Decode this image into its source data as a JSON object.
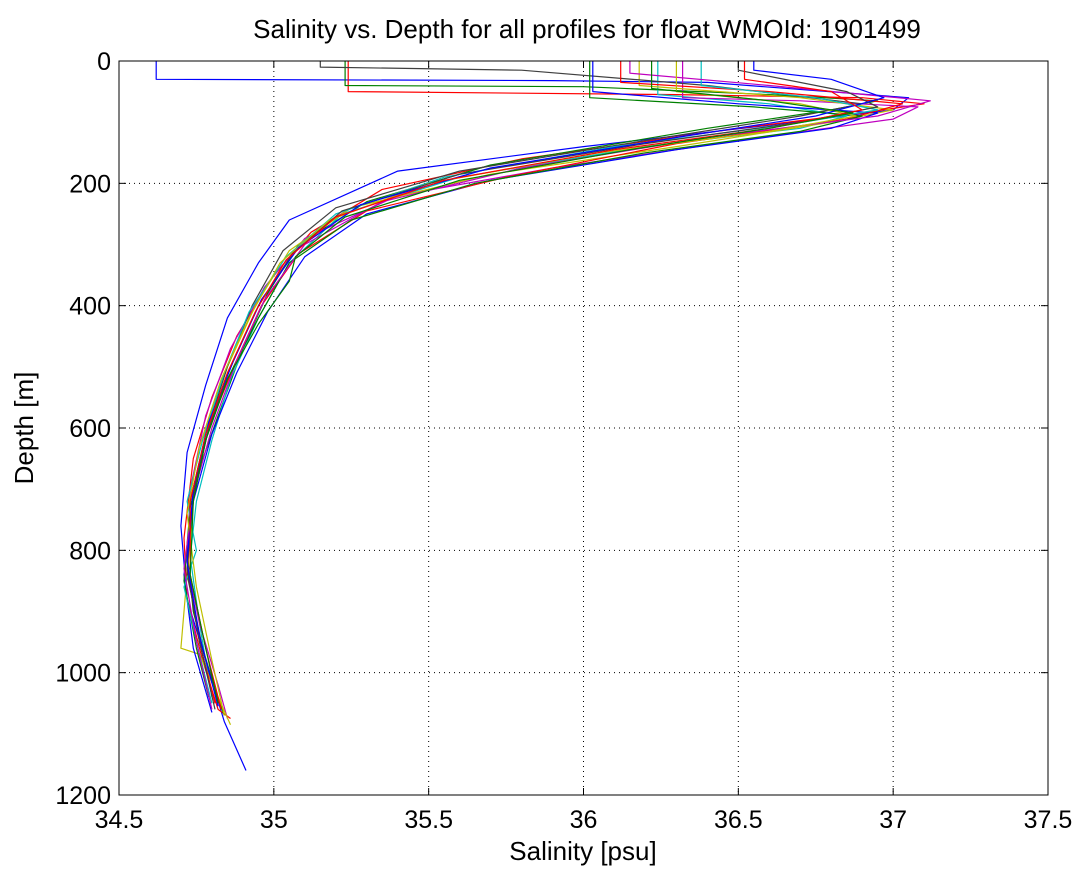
{
  "chart_data": {
    "type": "line",
    "title": "Salinity vs. Depth for all profiles for float WMOId: 1901499",
    "xlabel": "Salinity [psu]",
    "ylabel": "Depth [m]",
    "xlim": [
      34.5,
      37.5
    ],
    "ylim": [
      0,
      1200
    ],
    "y_reversed": true,
    "grid": true,
    "x_ticks": [
      34.5,
      35,
      35.5,
      36,
      36.5,
      37,
      37.5
    ],
    "x_tick_labels": [
      "34.5",
      "35",
      "35.5",
      "36",
      "36.5",
      "37",
      "37.5"
    ],
    "y_ticks": [
      0,
      200,
      400,
      600,
      800,
      1000,
      1200
    ],
    "y_tick_labels": [
      "0",
      "200",
      "400",
      "600",
      "800",
      "1000",
      "1200"
    ],
    "series": [
      {
        "color": "#0000ff",
        "x": [
          34.62,
          34.62,
          35.9,
          36.4,
          37.05,
          37.0,
          36.6,
          36.0,
          35.4,
          35.05,
          34.95,
          34.85,
          34.78,
          34.72,
          34.7,
          34.72,
          34.78,
          34.84,
          34.91
        ],
        "y": [
          0,
          30,
          32,
          35,
          60,
          80,
          105,
          140,
          180,
          260,
          330,
          420,
          530,
          640,
          760,
          880,
          980,
          1080,
          1160
        ]
      },
      {
        "color": "#ff0000",
        "x": [
          35.24,
          35.24,
          36.3,
          36.9,
          37.1,
          36.9,
          36.5,
          35.8,
          35.35,
          35.12,
          35.0,
          34.88,
          34.8,
          34.74,
          34.71,
          34.72,
          34.77,
          34.82,
          34.86
        ],
        "y": [
          0,
          50,
          55,
          60,
          70,
          85,
          110,
          160,
          210,
          280,
          350,
          450,
          550,
          650,
          780,
          880,
          980,
          1060,
          1075
        ]
      },
      {
        "color": "#008000",
        "x": [
          35.23,
          35.23,
          36.0,
          36.6,
          36.95,
          36.8,
          36.4,
          35.7,
          35.3,
          35.08,
          34.98,
          34.9,
          34.82,
          34.75,
          34.72,
          34.74,
          34.79,
          34.84
        ],
        "y": [
          0,
          40,
          42,
          55,
          65,
          80,
          110,
          170,
          230,
          300,
          380,
          470,
          580,
          680,
          800,
          900,
          1000,
          1070
        ]
      },
      {
        "color": "#00bfbf",
        "x": [
          36.24,
          36.24,
          36.6,
          36.85,
          36.7,
          36.2,
          35.6,
          35.22,
          35.05,
          34.95,
          34.86,
          34.8,
          34.75,
          34.73,
          34.76,
          34.8
        ],
        "y": [
          0,
          55,
          70,
          90,
          110,
          140,
          190,
          250,
          330,
          420,
          520,
          620,
          720,
          810,
          920,
          1040
        ]
      },
      {
        "color": "#bf00bf",
        "x": [
          36.32,
          36.32,
          36.7,
          37.08,
          37.0,
          36.5,
          35.9,
          35.4,
          35.1,
          34.97,
          34.86,
          34.78,
          34.73,
          34.72,
          34.76,
          34.82,
          34.85
        ],
        "y": [
          0,
          60,
          65,
          75,
          95,
          130,
          175,
          220,
          290,
          370,
          470,
          580,
          700,
          820,
          920,
          1020,
          1075
        ]
      },
      {
        "color": "#bfbf00",
        "x": [
          36.18,
          36.18,
          36.7,
          37.0,
          36.8,
          36.3,
          35.7,
          35.25,
          35.05,
          34.94,
          34.85,
          34.78,
          34.74,
          34.72,
          34.7,
          34.76,
          34.82,
          34.86
        ],
        "y": [
          0,
          40,
          60,
          80,
          100,
          140,
          185,
          240,
          310,
          400,
          500,
          610,
          720,
          840,
          960,
          970,
          1040,
          1085
        ]
      },
      {
        "color": "#404040",
        "x": [
          35.15,
          35.15,
          35.8,
          36.4,
          36.9,
          36.7,
          36.2,
          35.6,
          35.2,
          35.03,
          34.93,
          34.85,
          34.78,
          34.73,
          34.72,
          34.77,
          34.83
        ],
        "y": [
          0,
          10,
          15,
          40,
          70,
          90,
          130,
          180,
          240,
          310,
          400,
          500,
          610,
          720,
          840,
          960,
          1060
        ]
      },
      {
        "color": "#0000ff",
        "x": [
          36.03,
          36.03,
          36.5,
          36.95,
          36.8,
          36.3,
          35.7,
          35.3,
          35.1,
          34.98,
          34.88,
          34.8,
          34.74,
          34.71,
          34.74,
          34.8
        ],
        "y": [
          0,
          50,
          70,
          85,
          110,
          145,
          195,
          250,
          320,
          410,
          510,
          610,
          720,
          840,
          960,
          1065
        ]
      },
      {
        "color": "#ff0000",
        "x": [
          36.12,
          36.12,
          36.6,
          37.03,
          36.85,
          36.3,
          35.75,
          35.3,
          35.08,
          34.96,
          34.87,
          34.79,
          34.74,
          34.72,
          34.76,
          34.81
        ],
        "y": [
          0,
          35,
          50,
          70,
          95,
          135,
          190,
          245,
          315,
          400,
          500,
          600,
          710,
          830,
          950,
          1050
        ]
      },
      {
        "color": "#008000",
        "x": [
          36.02,
          36.02,
          36.55,
          36.9,
          36.7,
          36.2,
          35.65,
          35.25,
          35.05,
          34.95,
          34.85,
          34.78,
          34.73,
          34.71,
          34.75,
          34.79
        ],
        "y": [
          0,
          60,
          75,
          90,
          115,
          150,
          200,
          260,
          330,
          420,
          520,
          620,
          730,
          850,
          960,
          1040
        ]
      },
      {
        "color": "#00bfbf",
        "x": [
          36.38,
          36.38,
          36.75,
          36.95,
          36.65,
          36.1,
          35.55,
          35.2,
          35.04,
          34.92,
          34.84,
          34.77,
          34.72,
          34.75,
          34.71,
          34.76,
          34.8
        ],
        "y": [
          0,
          40,
          60,
          80,
          105,
          140,
          190,
          250,
          320,
          410,
          510,
          620,
          720,
          800,
          860,
          970,
          1050
        ]
      },
      {
        "color": "#bf00bf",
        "x": [
          36.15,
          36.15,
          36.6,
          37.12,
          36.95,
          36.4,
          35.8,
          35.35,
          35.1,
          34.97,
          34.88,
          34.8,
          34.74,
          34.71,
          34.75,
          34.8
        ],
        "y": [
          0,
          20,
          40,
          65,
          90,
          125,
          175,
          230,
          300,
          390,
          490,
          600,
          710,
          830,
          950,
          1060
        ]
      },
      {
        "color": "#bfbf00",
        "x": [
          36.3,
          36.3,
          36.7,
          36.88,
          36.6,
          36.05,
          35.5,
          35.18,
          35.02,
          34.92,
          34.83,
          34.76,
          34.72,
          34.75,
          34.8,
          34.84
        ],
        "y": [
          0,
          50,
          70,
          90,
          115,
          150,
          200,
          260,
          330,
          420,
          520,
          630,
          740,
          860,
          980,
          1070
        ]
      },
      {
        "color": "#404040",
        "x": [
          36.5,
          36.5,
          36.85,
          36.95,
          36.7,
          36.2,
          35.6,
          35.22,
          35.06,
          34.95,
          34.86,
          34.79,
          34.74,
          34.72,
          34.76,
          34.81
        ],
        "y": [
          0,
          15,
          50,
          75,
          100,
          135,
          185,
          245,
          315,
          400,
          500,
          600,
          710,
          830,
          950,
          1060
        ]
      },
      {
        "color": "#0000ff",
        "x": [
          36.55,
          36.55,
          36.8,
          36.97,
          36.75,
          36.3,
          35.7,
          35.28,
          35.08,
          34.96,
          34.87,
          34.79,
          34.74,
          34.72,
          34.76,
          34.82
        ],
        "y": [
          0,
          15,
          30,
          60,
          90,
          125,
          175,
          235,
          305,
          390,
          490,
          590,
          700,
          820,
          940,
          1055
        ]
      },
      {
        "color": "#ff0000",
        "x": [
          36.52,
          36.52,
          36.8,
          36.9,
          36.6,
          36.1,
          35.55,
          35.2,
          35.04,
          34.94,
          34.85,
          34.78,
          34.73,
          34.73,
          34.78,
          34.83
        ],
        "y": [
          0,
          30,
          50,
          80,
          110,
          145,
          195,
          255,
          325,
          410,
          510,
          610,
          720,
          840,
          960,
          1060
        ]
      },
      {
        "color": "#008000",
        "x": [
          36.22,
          36.22,
          36.6,
          36.87,
          36.6,
          36.15,
          35.6,
          35.23,
          35.07,
          35.05,
          34.95,
          34.85,
          34.78,
          34.74,
          34.73,
          34.78,
          34.82
        ],
        "y": [
          0,
          45,
          65,
          85,
          110,
          145,
          195,
          255,
          320,
          360,
          430,
          520,
          620,
          720,
          840,
          960,
          1050
        ]
      }
    ]
  }
}
